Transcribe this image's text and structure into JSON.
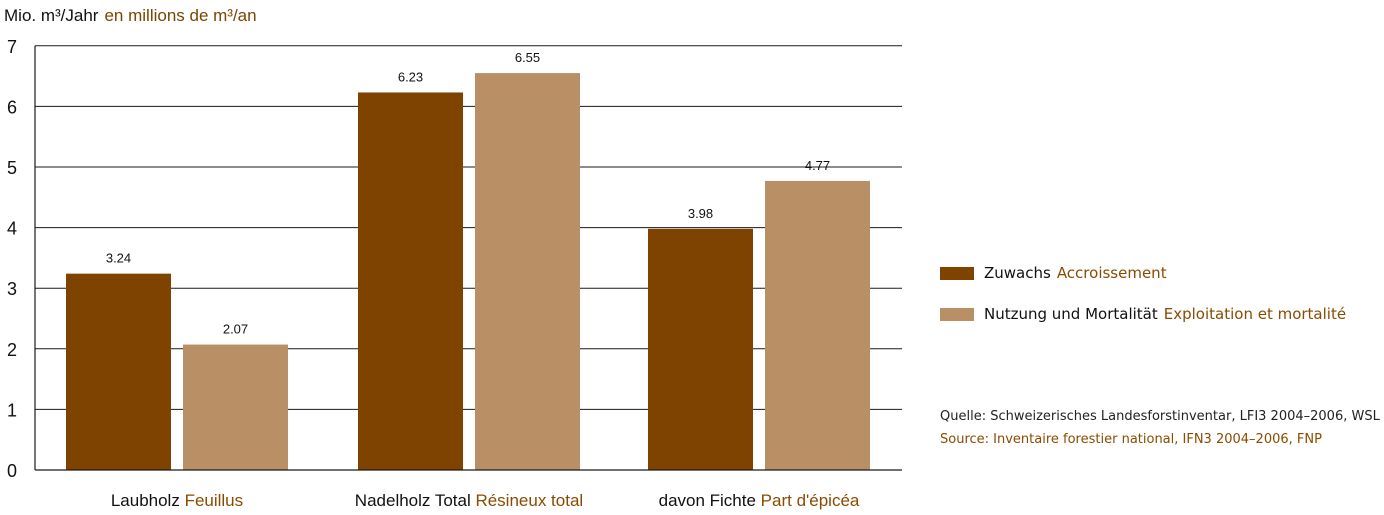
{
  "unit_label": {
    "de": "Mio. m³/Jahr",
    "fr": "en millions de m³/an"
  },
  "legend": [
    {
      "de": "Zuwachs",
      "fr": "Accroissement",
      "color": "#7f4300"
    },
    {
      "de": "Nutzung und Mortalität",
      "fr": "Exploitation et mortalité",
      "color": "#b99066"
    }
  ],
  "source": {
    "de": "Quelle: Schweizerisches Landesforstinventar, LFI3 2004–2006, WSL",
    "fr": "Source: Inventaire forestier national, IFN3 2004–2006, FNP"
  },
  "chart_data": {
    "type": "bar",
    "categories": [
      {
        "de": "Laubholz",
        "fr": "Feuillus"
      },
      {
        "de": "Nadelholz Total",
        "fr": "Résineux total"
      },
      {
        "de": "davon Fichte",
        "fr": "Part d'épicéa"
      }
    ],
    "series": [
      {
        "name": "Zuwachs Accroissement",
        "values": [
          3.24,
          6.23,
          3.98
        ],
        "labels": [
          "3.24",
          "6.23",
          "3.98"
        ],
        "color": "#7f4300"
      },
      {
        "name": "Nutzung und Mortalität Exploitation et mortalité",
        "values": [
          2.07,
          6.55,
          4.77
        ],
        "labels": [
          "2.07",
          "6.55",
          "4.77"
        ],
        "color": "#b99066"
      }
    ],
    "y_ticks": [
      0,
      1,
      2,
      3,
      4,
      5,
      6,
      7
    ],
    "ylim": [
      0,
      7
    ],
    "grid": true,
    "category_label_color_fr": "#8a4b00",
    "legend_position": "right"
  }
}
